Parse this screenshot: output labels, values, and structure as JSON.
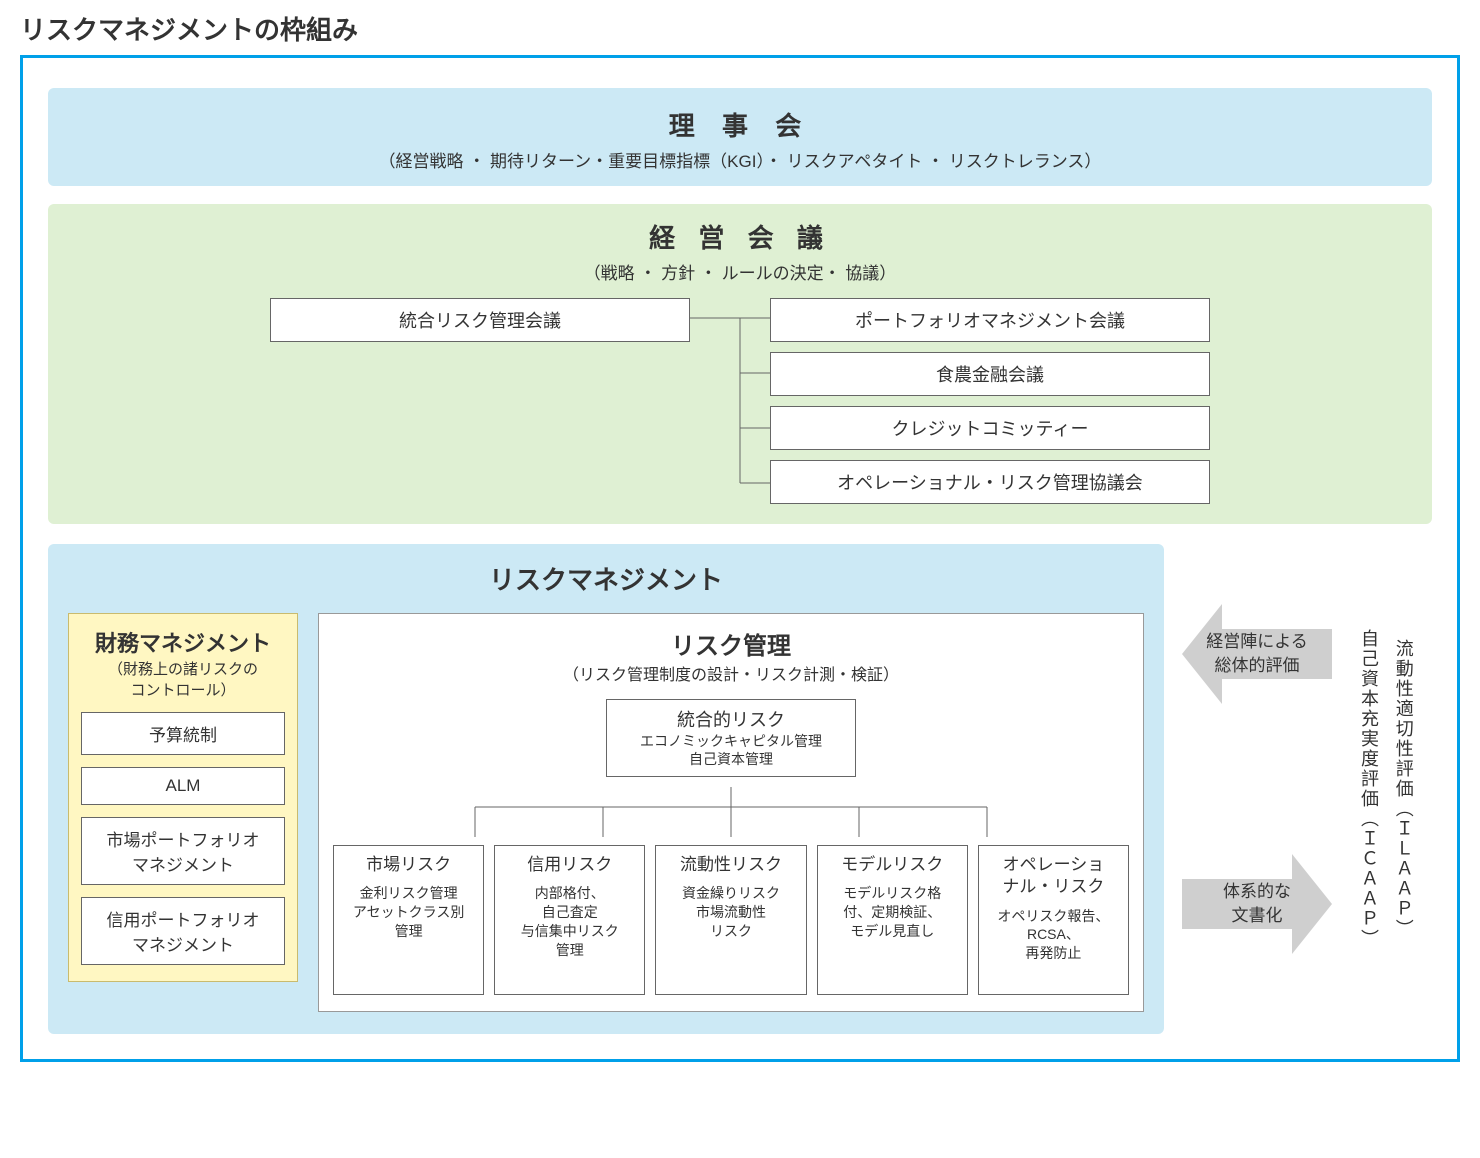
{
  "colors": {
    "frame_border": "#00a0e9",
    "board_bg": "#cce9f5",
    "mgmt_bg": "#dff0d3",
    "fin_bg": "#fff7c2",
    "arrow_fill": "#cfcfcf",
    "box_border": "#666666",
    "text": "#333333"
  },
  "title": "リスクマネジメントの枠組み",
  "board": {
    "title": "理 事 会",
    "sub": "（経営戦略 ・ 期待リターン・重要目標指標（KGI）・ リスクアペタイト ・ リスクトレランス）"
  },
  "mgmt": {
    "title": "経 営 会 議",
    "sub": "（戦略 ・ 方針 ・ ルールの決定・ 協議）",
    "left": "統合リスク管理会議",
    "right": [
      "ポートフォリオマネジメント会議",
      "食農金融会議",
      "クレジットコミッティー",
      "オペレーショナル・リスク管理協議会"
    ]
  },
  "risk_mgmt": {
    "title": "リスクマネジメント",
    "fin": {
      "title": "財務マネジメント",
      "sub1": "（財務上の諸リスクの",
      "sub2": "コントロール）",
      "items": [
        "予算統制",
        "ALM",
        "市場ポートフォリオ\nマネジメント",
        "信用ポートフォリオ\nマネジメント"
      ]
    },
    "ctrl": {
      "title": "リスク管理",
      "sub": "（リスク管理制度の設計・リスク計測・検証）",
      "integrated": {
        "title": "統合的リスク",
        "sub1": "エコノミックキャピタル管理",
        "sub2": "自己資本管理"
      },
      "leaves": [
        {
          "title": "市場リスク",
          "sub": "金利リスク管理\nアセットクラス別\n管理"
        },
        {
          "title": "信用リスク",
          "sub": "内部格付、\n自己査定\n与信集中リスク\n管理"
        },
        {
          "title": "流動性リスク",
          "sub": "資金繰りリスク\n市場流動性\nリスク"
        },
        {
          "title": "モデルリスク",
          "sub": "モデルリスク格\n付、定期検証、\nモデル見直し"
        },
        {
          "title": "オペレーショ\nナル・リスク",
          "sub": "オペリスク報告、\nRCSA、\n再発防止"
        }
      ]
    }
  },
  "arrows": {
    "top": "経営陣による\n総体的評価",
    "bottom": "体系的な\n文書化"
  },
  "vert": {
    "a": "自己資本充実度評価（ＩＣＡＡＰ）",
    "b": "流動性適切性評価（ＩＬＡＡＰ）"
  }
}
